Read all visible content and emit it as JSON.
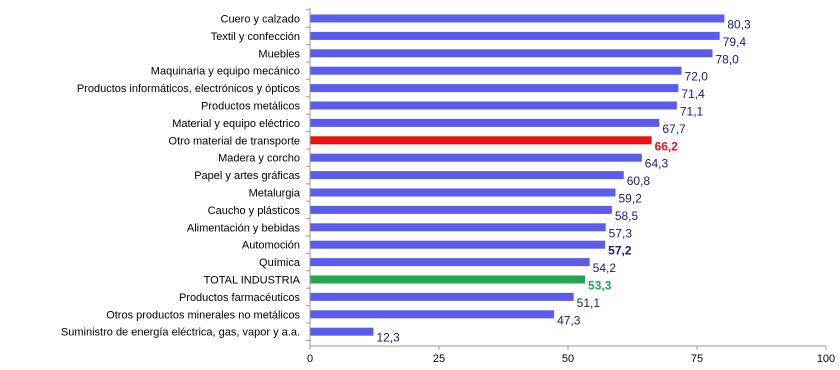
{
  "chart_data": {
    "type": "bar",
    "orientation": "horizontal",
    "categories": [
      "Cuero y calzado",
      "Textil y confección",
      "Muebles",
      "Maquinaria y equipo mecánico",
      "Productos informáticos, electrónicos y ópticos",
      "Productos metálicos",
      "Material y equipo eléctrico",
      "Otro material de transporte",
      "Madera y corcho",
      "Papel y artes gráficas",
      "Metalurgia",
      "Caucho y plásticos",
      "Alimentación y bebidas",
      "Automoción",
      "Química",
      "TOTAL INDUSTRIA",
      "Productos farmacéuticos",
      "Otros productos minerales no metálicos",
      "Suministro de energía eléctrica, gas, vapor y a.a."
    ],
    "values": [
      80.3,
      79.4,
      78.0,
      72.0,
      71.4,
      71.1,
      67.7,
      66.2,
      64.3,
      60.8,
      59.2,
      58.5,
      57.3,
      57.2,
      54.2,
      53.3,
      51.1,
      47.3,
      12.3
    ],
    "value_labels": [
      "80,3",
      "79,4",
      "78,0",
      "72,0",
      "71,4",
      "71,1",
      "67,7",
      "66,2",
      "64,3",
      "60,8",
      "59,2",
      "58,5",
      "57,3",
      "57,2",
      "54,2",
      "53,3",
      "51,1",
      "47,3",
      "12,3"
    ],
    "highlights": {
      "Otro material de transporte": "red",
      "TOTAL INDUSTRIA": "green",
      "Automoción": "bold"
    },
    "colors": {
      "default_bar": "#5b5bee",
      "default_label": "#1a1a7a",
      "red": "#ee1111",
      "green": "#1fa84d",
      "bold_label": "#1a1a7a",
      "axis": "#999999"
    },
    "xlim": [
      0,
      100
    ],
    "xticks": [
      0,
      25,
      50,
      75,
      100
    ],
    "xlabel": "",
    "ylabel": "",
    "title": "",
    "grid": false,
    "legend": "none"
  }
}
